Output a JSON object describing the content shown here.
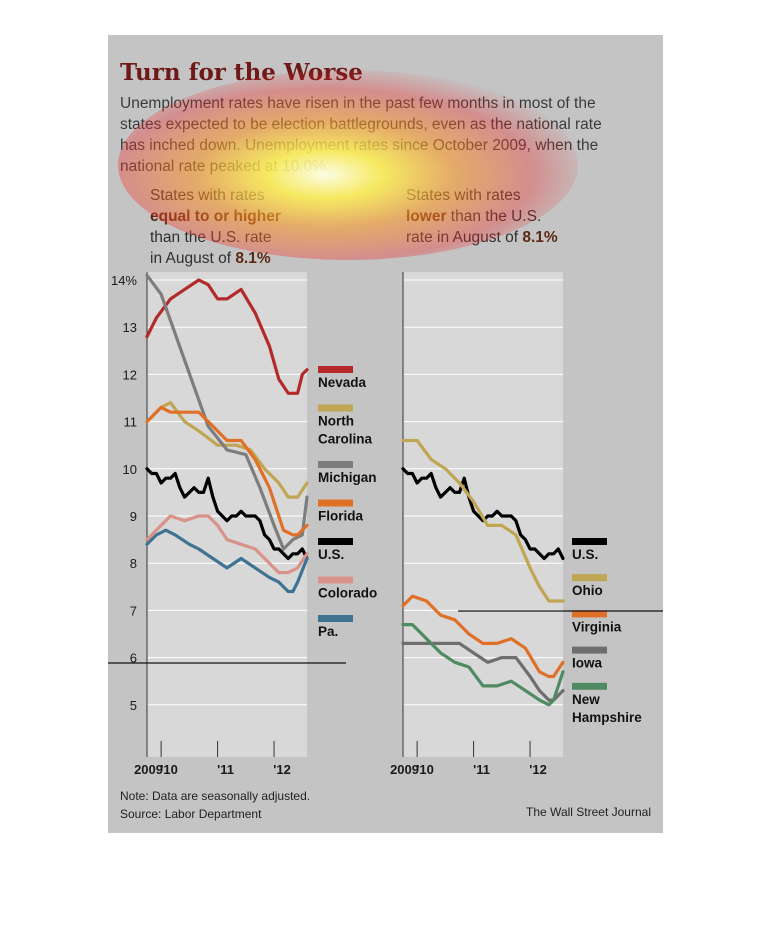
{
  "title": "Turn for the Worse",
  "subtitle": "Unemployment rates have risen in the past few months in most of the states expected to be election battlegrounds, even as the national rate has inched down. Unemployment rates since October 2009, when the national rate peaked at 10.0%:",
  "left_label": {
    "line1": "States with rates",
    "line2": "equal to or higher",
    "line3": "than the U.S. rate",
    "line4_prefix": "in August of ",
    "line4_value": "8.1%"
  },
  "right_label": {
    "line1": "States with rates",
    "line2_bold": "lower",
    "line2_rest": " than the U.S.",
    "line3_prefix": "rate in August of ",
    "line3_value": "8.1%"
  },
  "note": "Note: Data are seasonally adjusted.",
  "source": "Source: Labor Department",
  "credit": "The Wall Street Journal",
  "colors": {
    "Nevada": "#b42a2a",
    "North Carolina": "#c0a552",
    "Michigan": "#7d7d7d",
    "Florida": "#e07027",
    "U.S.": "#000000",
    "Colorado": "#d9928a",
    "Pa.": "#3e7491",
    "Ohio": "#c0a552",
    "Virginia": "#e07027",
    "Iowa": "#6e6e6e",
    "New Hampshire": "#4f8a62"
  },
  "chart_data": [
    {
      "type": "line",
      "panel": "left",
      "title": "",
      "xlabel": "",
      "ylabel": "",
      "y_tick_labels": [
        "14%",
        "13",
        "12",
        "11",
        "10",
        "9",
        "8",
        "7",
        "6",
        "5"
      ],
      "y_ticks": [
        14,
        13,
        12,
        11,
        10,
        9,
        8,
        7,
        6,
        5
      ],
      "ylim": [
        4.2,
        14.2
      ],
      "x_tick_labels": [
        "2009",
        "'10",
        "'11",
        "'12"
      ],
      "xlim": [
        "2009-10",
        "2012-08"
      ],
      "series": [
        {
          "name": "Nevada",
          "legend_lines": [
            "Nevada"
          ],
          "x": [
            "2009-10",
            "2009-12",
            "2010-03",
            "2010-06",
            "2010-09",
            "2010-11",
            "2011-01",
            "2011-03",
            "2011-06",
            "2011-09",
            "2011-12",
            "2012-02",
            "2012-04",
            "2012-05",
            "2012-06",
            "2012-07",
            "2012-08"
          ],
          "values": [
            12.8,
            13.2,
            13.6,
            13.8,
            14.0,
            13.9,
            13.6,
            13.6,
            13.8,
            13.3,
            12.6,
            11.9,
            11.6,
            11.6,
            11.6,
            12.0,
            12.1
          ]
        },
        {
          "name": "North Carolina",
          "legend_lines": [
            "North",
            "Carolina"
          ],
          "x": [
            "2009-10",
            "2010-01",
            "2010-03",
            "2010-06",
            "2010-09",
            "2011-01",
            "2011-05",
            "2011-08",
            "2011-11",
            "2012-02",
            "2012-04",
            "2012-06",
            "2012-08"
          ],
          "values": [
            11.0,
            11.3,
            11.4,
            11.0,
            10.8,
            10.5,
            10.5,
            10.4,
            10.0,
            9.7,
            9.4,
            9.4,
            9.7
          ]
        },
        {
          "name": "Michigan",
          "legend_lines": [
            "Michigan"
          ],
          "x": [
            "2009-10",
            "2010-01",
            "2010-06",
            "2010-11",
            "2011-03",
            "2011-07",
            "2011-10",
            "2012-01",
            "2012-03",
            "2012-05",
            "2012-07",
            "2012-08"
          ],
          "values": [
            14.1,
            13.7,
            12.3,
            10.9,
            10.4,
            10.3,
            9.6,
            8.8,
            8.3,
            8.5,
            8.6,
            9.4
          ]
        },
        {
          "name": "Florida",
          "legend_lines": [
            "Florida"
          ],
          "x": [
            "2009-10",
            "2010-01",
            "2010-03",
            "2010-06",
            "2010-09",
            "2010-12",
            "2011-03",
            "2011-06",
            "2011-09",
            "2011-12",
            "2012-03",
            "2012-05",
            "2012-06",
            "2012-08"
          ],
          "values": [
            11.0,
            11.3,
            11.2,
            11.2,
            11.2,
            10.9,
            10.6,
            10.6,
            10.2,
            9.6,
            8.7,
            8.6,
            8.6,
            8.8
          ]
        },
        {
          "name": "U.S.",
          "legend_lines": [
            "U.S."
          ],
          "x": [
            "2009-10",
            "2009-11",
            "2009-12",
            "2010-01",
            "2010-02",
            "2010-03",
            "2010-04",
            "2010-05",
            "2010-06",
            "2010-07",
            "2010-08",
            "2010-09",
            "2010-10",
            "2010-11",
            "2010-12",
            "2011-01",
            "2011-02",
            "2011-03",
            "2011-04",
            "2011-05",
            "2011-06",
            "2011-07",
            "2011-08",
            "2011-09",
            "2011-10",
            "2011-11",
            "2011-12",
            "2012-01",
            "2012-02",
            "2012-03",
            "2012-04",
            "2012-05",
            "2012-06",
            "2012-07",
            "2012-08"
          ],
          "values": [
            10.0,
            9.9,
            9.9,
            9.7,
            9.8,
            9.8,
            9.9,
            9.6,
            9.4,
            9.5,
            9.6,
            9.5,
            9.5,
            9.8,
            9.4,
            9.1,
            9.0,
            8.9,
            9.0,
            9.0,
            9.1,
            9.0,
            9.0,
            9.0,
            8.9,
            8.6,
            8.5,
            8.3,
            8.3,
            8.2,
            8.1,
            8.2,
            8.2,
            8.3,
            8.1
          ]
        },
        {
          "name": "Colorado",
          "legend_lines": [
            "Colorado"
          ],
          "x": [
            "2009-10",
            "2010-01",
            "2010-03",
            "2010-06",
            "2010-09",
            "2010-11",
            "2011-01",
            "2011-03",
            "2011-06",
            "2011-09",
            "2011-12",
            "2012-02",
            "2012-04",
            "2012-06",
            "2012-08"
          ],
          "values": [
            8.5,
            8.8,
            9.0,
            8.9,
            9.0,
            9.0,
            8.8,
            8.5,
            8.4,
            8.3,
            8.0,
            7.8,
            7.8,
            7.9,
            8.2
          ]
        },
        {
          "name": "Pa.",
          "legend_lines": [
            "Pa."
          ],
          "x": [
            "2009-10",
            "2009-12",
            "2010-02",
            "2010-04",
            "2010-07",
            "2010-09",
            "2010-12",
            "2011-03",
            "2011-06",
            "2011-09",
            "2011-12",
            "2012-02",
            "2012-04",
            "2012-05",
            "2012-06",
            "2012-08"
          ],
          "values": [
            8.4,
            8.6,
            8.7,
            8.6,
            8.4,
            8.3,
            8.1,
            7.9,
            8.1,
            7.9,
            7.7,
            7.6,
            7.4,
            7.4,
            7.6,
            8.1
          ]
        }
      ]
    },
    {
      "type": "line",
      "panel": "right",
      "title": "",
      "xlabel": "",
      "ylabel": "",
      "ylim": [
        4.2,
        14.2
      ],
      "x_tick_labels": [
        "2009",
        "'10",
        "'11",
        "'12"
      ],
      "xlim": [
        "2009-10",
        "2012-08"
      ],
      "series": [
        {
          "name": "U.S.",
          "legend_lines": [
            "U.S."
          ],
          "x": [
            "2009-10",
            "2009-11",
            "2009-12",
            "2010-01",
            "2010-02",
            "2010-03",
            "2010-04",
            "2010-05",
            "2010-06",
            "2010-07",
            "2010-08",
            "2010-09",
            "2010-10",
            "2010-11",
            "2010-12",
            "2011-01",
            "2011-02",
            "2011-03",
            "2011-04",
            "2011-05",
            "2011-06",
            "2011-07",
            "2011-08",
            "2011-09",
            "2011-10",
            "2011-11",
            "2011-12",
            "2012-01",
            "2012-02",
            "2012-03",
            "2012-04",
            "2012-05",
            "2012-06",
            "2012-07",
            "2012-08"
          ],
          "values": [
            10.0,
            9.9,
            9.9,
            9.7,
            9.8,
            9.8,
            9.9,
            9.6,
            9.4,
            9.5,
            9.6,
            9.5,
            9.5,
            9.8,
            9.4,
            9.1,
            9.0,
            8.9,
            9.0,
            9.0,
            9.1,
            9.0,
            9.0,
            9.0,
            8.9,
            8.6,
            8.5,
            8.3,
            8.3,
            8.2,
            8.1,
            8.2,
            8.2,
            8.3,
            8.1
          ]
        },
        {
          "name": "Ohio",
          "legend_lines": [
            "Ohio"
          ],
          "x": [
            "2009-10",
            "2010-01",
            "2010-04",
            "2010-07",
            "2010-10",
            "2011-01",
            "2011-04",
            "2011-07",
            "2011-10",
            "2012-01",
            "2012-03",
            "2012-05",
            "2012-08"
          ],
          "values": [
            10.6,
            10.6,
            10.2,
            10.0,
            9.7,
            9.3,
            8.8,
            8.8,
            8.6,
            7.9,
            7.5,
            7.2,
            7.2
          ]
        },
        {
          "name": "Virginia",
          "legend_lines": [
            "Virginia"
          ],
          "x": [
            "2009-10",
            "2009-12",
            "2010-03",
            "2010-06",
            "2010-09",
            "2010-12",
            "2011-03",
            "2011-06",
            "2011-09",
            "2011-12",
            "2012-03",
            "2012-05",
            "2012-06",
            "2012-08"
          ],
          "values": [
            7.1,
            7.3,
            7.2,
            6.9,
            6.8,
            6.5,
            6.3,
            6.3,
            6.4,
            6.2,
            5.7,
            5.6,
            5.6,
            5.9
          ]
        },
        {
          "name": "Iowa",
          "legend_lines": [
            "Iowa"
          ],
          "x": [
            "2009-10",
            "2010-01",
            "2010-04",
            "2010-07",
            "2010-10",
            "2011-01",
            "2011-04",
            "2011-07",
            "2011-10",
            "2012-01",
            "2012-03",
            "2012-05",
            "2012-06",
            "2012-08"
          ],
          "values": [
            6.3,
            6.3,
            6.3,
            6.3,
            6.3,
            6.1,
            5.9,
            6.0,
            6.0,
            5.6,
            5.3,
            5.1,
            5.1,
            5.3
          ]
        },
        {
          "name": "New Hampshire",
          "legend_lines": [
            "New",
            "Hampshire"
          ],
          "x": [
            "2009-10",
            "2009-12",
            "2010-03",
            "2010-06",
            "2010-09",
            "2010-12",
            "2011-03",
            "2011-06",
            "2011-09",
            "2011-12",
            "2012-03",
            "2012-05",
            "2012-06",
            "2012-08"
          ],
          "values": [
            6.7,
            6.7,
            6.4,
            6.1,
            5.9,
            5.8,
            5.4,
            5.4,
            5.5,
            5.3,
            5.1,
            5.0,
            5.1,
            5.7
          ]
        }
      ]
    }
  ]
}
